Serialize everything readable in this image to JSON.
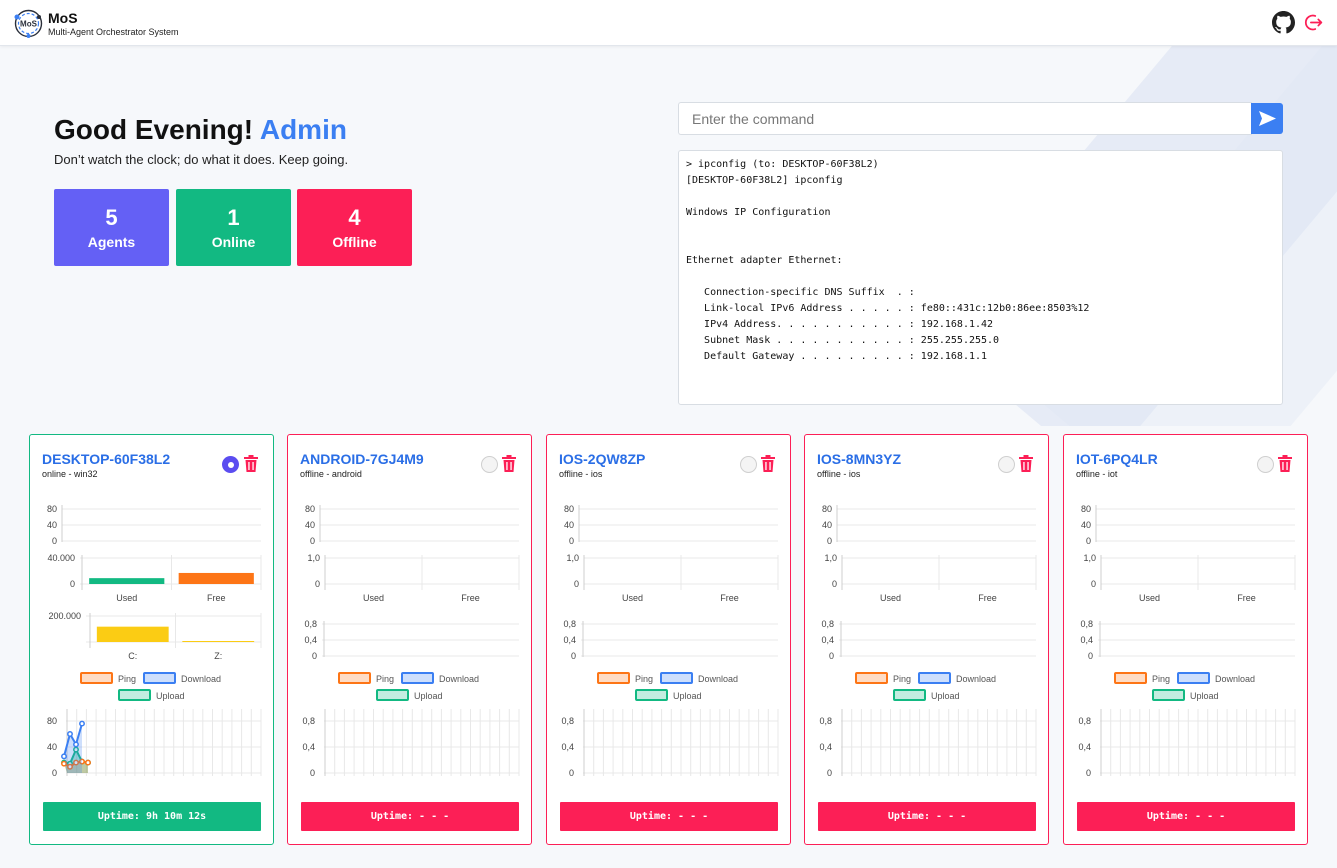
{
  "app": {
    "name": "MoS",
    "subtitle": "Multi-Agent Orchestrator System",
    "logo_text": "MoS"
  },
  "header": {
    "icons": [
      "github-icon",
      "logout-icon"
    ]
  },
  "greeting": {
    "prefix": "Good Evening!",
    "user": "Admin",
    "quote": "Don’t watch the clock; do what it does. Keep going."
  },
  "stats": [
    {
      "value": "5",
      "label": "Agents",
      "color": "#6460f5"
    },
    {
      "value": "1",
      "label": "Online",
      "color": "#12b982"
    },
    {
      "value": "4",
      "label": "Offline",
      "color": "#fc1f56"
    }
  ],
  "command": {
    "placeholder": "Enter the command",
    "value": ""
  },
  "terminal": {
    "output": "> ipconfig (to: DESKTOP-60F38L2)\n[DESKTOP-60F38L2] ipconfig\n\nWindows IP Configuration\n\n\nEthernet adapter Ethernet:\n\n   Connection-specific DNS Suffix  . :\n   Link-local IPv6 Address . . . . . : fe80::431c:12b0:86ee:8503%12\n   IPv4 Address. . . . . . . . . . . : 192.168.1.42\n   Subnet Mask . . . . . . . . . . . : 255.255.255.0\n   Default Gateway . . . . . . . . . : 192.168.1.1"
  },
  "colors": {
    "accent": "#3b7ff2",
    "online": "#12b982",
    "offline": "#fc1f56",
    "selected": "#5b4df0",
    "used_bar": "#12b982",
    "free_bar": "#fd7516",
    "disk_bar": "#fbcc14"
  },
  "legend": {
    "ping": "Ping",
    "download": "Download",
    "upload": "Upload"
  },
  "agents": [
    {
      "name": "DESKTOP-60F38L2",
      "status_line": "online - win32",
      "status": "online",
      "selected": true,
      "uptime": "Uptime: 9h 10m 12s",
      "cpu_ticks": [
        "80",
        "40",
        "0"
      ],
      "mem_ticks": [
        "40.000",
        "0"
      ],
      "mem_categories": [
        "Used",
        "Free"
      ],
      "mem_values": [
        9000,
        17000
      ],
      "mem_max": 40000,
      "disk_ticks": [
        "200.000",
        ""
      ],
      "disk_categories": [
        "C:",
        "Z:"
      ],
      "disk_values": [
        118000,
        2000
      ],
      "disk_max": 200000,
      "net_ticks": [
        "80",
        "40",
        "0"
      ],
      "net_max": 100,
      "net_ping": [
        18,
        12,
        20,
        22,
        20
      ],
      "net_download": [
        32,
        75,
        55,
        95
      ],
      "net_upload": [
        20,
        18,
        45,
        22,
        20
      ]
    },
    {
      "name": "ANDROID-7GJ4M9",
      "status_line": "offline - android",
      "status": "offline",
      "selected": false,
      "uptime": "Uptime: - - -",
      "cpu_ticks": [
        "80",
        "40",
        "0"
      ],
      "mem_ticks": [
        "1,0",
        "0"
      ],
      "mem_categories": [
        "Used",
        "Free"
      ],
      "disk_ticks": [
        "0,8",
        "0,4",
        "0"
      ],
      "net_ticks": [
        "0,8",
        "0,4",
        "0"
      ]
    },
    {
      "name": "IOS-2QW8ZP",
      "status_line": "offline - ios",
      "status": "offline",
      "selected": false,
      "uptime": "Uptime: - - -",
      "cpu_ticks": [
        "80",
        "40",
        "0"
      ],
      "mem_ticks": [
        "1,0",
        "0"
      ],
      "mem_categories": [
        "Used",
        "Free"
      ],
      "disk_ticks": [
        "0,8",
        "0,4",
        "0"
      ],
      "net_ticks": [
        "0,8",
        "0,4",
        "0"
      ]
    },
    {
      "name": "IOS-8MN3YZ",
      "status_line": "offline - ios",
      "status": "offline",
      "selected": false,
      "uptime": "Uptime: - - -",
      "cpu_ticks": [
        "80",
        "40",
        "0"
      ],
      "mem_ticks": [
        "1,0",
        "0"
      ],
      "mem_categories": [
        "Used",
        "Free"
      ],
      "disk_ticks": [
        "0,8",
        "0,4",
        "0"
      ],
      "net_ticks": [
        "0,8",
        "0,4",
        "0"
      ]
    },
    {
      "name": "IOT-6PQ4LR",
      "status_line": "offline - iot",
      "status": "offline",
      "selected": false,
      "uptime": "Uptime: - - -",
      "cpu_ticks": [
        "80",
        "40",
        "0"
      ],
      "mem_ticks": [
        "1,0",
        "0"
      ],
      "mem_categories": [
        "Used",
        "Free"
      ],
      "disk_ticks": [
        "0,8",
        "0,4",
        "0"
      ],
      "net_ticks": [
        "0,8",
        "0,4",
        "0"
      ]
    }
  ]
}
